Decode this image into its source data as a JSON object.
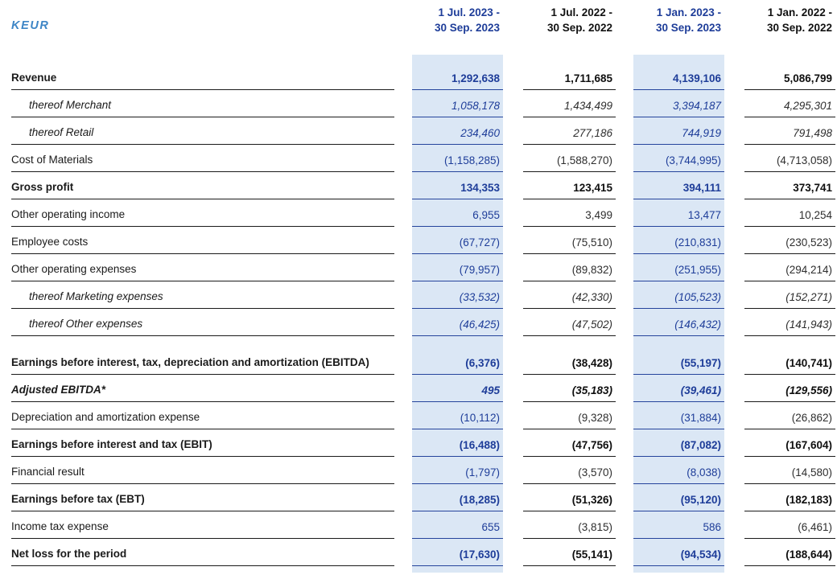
{
  "table": {
    "unit_label": "KEUR",
    "colors": {
      "highlight_bg": "#dbe7f5",
      "highlight_text": "#1e3d99",
      "highlight_border": "#25449c",
      "unit_label_text": "#3e86c6",
      "ink": "#1a1a1a"
    },
    "columns": [
      {
        "line1": "1 Jul. 2023 -",
        "line2": "30 Sep. 2023",
        "highlighted": true
      },
      {
        "line1": "1 Jul. 2022 -",
        "line2": "30 Sep. 2022",
        "highlighted": false
      },
      {
        "line1": "1 Jan. 2023 -",
        "line2": "30 Sep. 2023",
        "highlighted": true
      },
      {
        "line1": "1 Jan. 2022 -",
        "line2": "30 Sep. 2022",
        "highlighted": false
      }
    ],
    "rows": [
      {
        "label": "Revenue",
        "style": "bold",
        "tall": false,
        "values": [
          "1,292,638",
          "1,711,685",
          "4,139,106",
          "5,086,799"
        ]
      },
      {
        "label": "thereof Merchant",
        "style": "thereof",
        "tall": false,
        "values": [
          "1,058,178",
          "1,434,499",
          "3,394,187",
          "4,295,301"
        ]
      },
      {
        "label": "thereof Retail",
        "style": "thereof",
        "tall": false,
        "values": [
          "234,460",
          "277,186",
          "744,919",
          "791,498"
        ]
      },
      {
        "label": "Cost of Materials",
        "style": "regular",
        "tall": false,
        "values": [
          "(1,158,285)",
          "(1,588,270)",
          "(3,744,995)",
          "(4,713,058)"
        ]
      },
      {
        "label": "Gross profit",
        "style": "bold",
        "tall": false,
        "values": [
          "134,353",
          "123,415",
          "394,111",
          "373,741"
        ]
      },
      {
        "label": "Other operating income",
        "style": "regular",
        "tall": false,
        "values": [
          "6,955",
          "3,499",
          "13,477",
          "10,254"
        ]
      },
      {
        "label": "Employee costs",
        "style": "regular",
        "tall": false,
        "values": [
          "(67,727)",
          "(75,510)",
          "(210,831)",
          "(230,523)"
        ]
      },
      {
        "label": "Other operating expenses",
        "style": "regular",
        "tall": false,
        "values": [
          "(79,957)",
          "(89,832)",
          "(251,955)",
          "(294,214)"
        ]
      },
      {
        "label": "thereof Marketing expenses",
        "style": "thereof",
        "tall": false,
        "values": [
          "(33,532)",
          "(42,330)",
          "(105,523)",
          "(152,271)"
        ]
      },
      {
        "label": "thereof Other expenses",
        "style": "thereof",
        "tall": false,
        "values": [
          "(46,425)",
          "(47,502)",
          "(146,432)",
          "(141,943)"
        ]
      },
      {
        "label": "Earnings before interest, tax, depreciation and amortization (EBITDA)",
        "style": "bold",
        "tall": true,
        "values": [
          "(6,376)",
          "(38,428)",
          "(55,197)",
          "(140,741)"
        ]
      },
      {
        "label": "Adjusted EBITDA*",
        "style": "bold-italic",
        "tall": false,
        "values": [
          "495",
          "(35,183)",
          "(39,461)",
          "(129,556)"
        ]
      },
      {
        "label": "Depreciation and amortization expense",
        "style": "regular",
        "tall": false,
        "values": [
          "(10,112)",
          "(9,328)",
          "(31,884)",
          "(26,862)"
        ]
      },
      {
        "label": "Earnings before interest and tax (EBIT)",
        "style": "bold",
        "tall": false,
        "values": [
          "(16,488)",
          "(47,756)",
          "(87,082)",
          "(167,604)"
        ]
      },
      {
        "label": "Financial result",
        "style": "regular",
        "tall": false,
        "values": [
          "(1,797)",
          "(3,570)",
          "(8,038)",
          "(14,580)"
        ]
      },
      {
        "label": "Earnings before tax (EBT)",
        "style": "bold",
        "tall": false,
        "values": [
          "(18,285)",
          "(51,326)",
          "(95,120)",
          "(182,183)"
        ]
      },
      {
        "label": "Income tax expense",
        "style": "regular",
        "tall": false,
        "values": [
          "655",
          "(3,815)",
          "586",
          "(6,461)"
        ]
      },
      {
        "label": "Net loss for the period",
        "style": "bold",
        "tall": false,
        "values": [
          "(17,630)",
          "(55,141)",
          "(94,534)",
          "(188,644)"
        ]
      }
    ]
  }
}
